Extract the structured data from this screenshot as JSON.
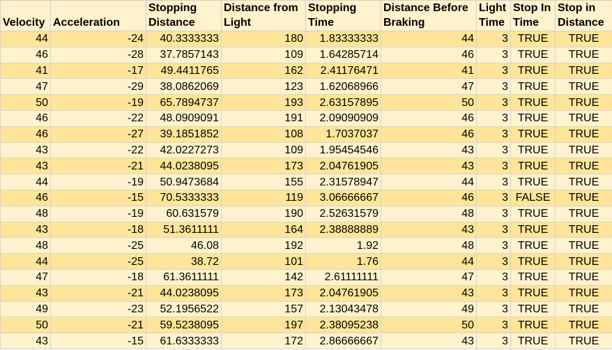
{
  "headers": [
    "Velocity",
    "Acceleration",
    "Stopping Distance",
    "Distance from Light",
    "Stopping Time",
    "Distance Before Braking",
    "Light Time",
    "Stop In Time",
    "Stop in Distance"
  ],
  "rows": [
    [
      "44",
      "-24",
      "40.3333333",
      "180",
      "1.83333333",
      "44",
      "3",
      "TRUE",
      "TRUE"
    ],
    [
      "46",
      "-28",
      "37.7857143",
      "109",
      "1.64285714",
      "46",
      "3",
      "TRUE",
      "TRUE"
    ],
    [
      "41",
      "-17",
      "49.4411765",
      "162",
      "2.41176471",
      "41",
      "3",
      "TRUE",
      "TRUE"
    ],
    [
      "47",
      "-29",
      "38.0862069",
      "123",
      "1.62068966",
      "47",
      "3",
      "TRUE",
      "TRUE"
    ],
    [
      "50",
      "-19",
      "65.7894737",
      "193",
      "2.63157895",
      "50",
      "3",
      "TRUE",
      "TRUE"
    ],
    [
      "46",
      "-22",
      "48.0909091",
      "191",
      "2.09090909",
      "46",
      "3",
      "TRUE",
      "TRUE"
    ],
    [
      "46",
      "-27",
      "39.1851852",
      "108",
      "1.7037037",
      "46",
      "3",
      "TRUE",
      "TRUE"
    ],
    [
      "43",
      "-22",
      "42.0227273",
      "109",
      "1.95454546",
      "43",
      "3",
      "TRUE",
      "TRUE"
    ],
    [
      "43",
      "-21",
      "44.0238095",
      "173",
      "2.04761905",
      "43",
      "3",
      "TRUE",
      "TRUE"
    ],
    [
      "44",
      "-19",
      "50.9473684",
      "155",
      "2.31578947",
      "44",
      "3",
      "TRUE",
      "TRUE"
    ],
    [
      "46",
      "-15",
      "70.5333333",
      "119",
      "3.06666667",
      "46",
      "3",
      "FALSE",
      "TRUE"
    ],
    [
      "48",
      "-19",
      "60.631579",
      "190",
      "2.52631579",
      "48",
      "3",
      "TRUE",
      "TRUE"
    ],
    [
      "43",
      "-18",
      "51.3611111",
      "164",
      "2.38888889",
      "43",
      "3",
      "TRUE",
      "TRUE"
    ],
    [
      "48",
      "-25",
      "46.08",
      "192",
      "1.92",
      "48",
      "3",
      "TRUE",
      "TRUE"
    ],
    [
      "44",
      "-25",
      "38.72",
      "101",
      "1.76",
      "44",
      "3",
      "TRUE",
      "TRUE"
    ],
    [
      "47",
      "-18",
      "61.3611111",
      "142",
      "2.61111111",
      "47",
      "3",
      "TRUE",
      "TRUE"
    ],
    [
      "43",
      "-21",
      "44.0238095",
      "173",
      "2.04761905",
      "43",
      "3",
      "TRUE",
      "TRUE"
    ],
    [
      "49",
      "-23",
      "52.1956522",
      "157",
      "2.13043478",
      "49",
      "3",
      "TRUE",
      "TRUE"
    ],
    [
      "50",
      "-21",
      "59.5238095",
      "197",
      "2.38095238",
      "50",
      "3",
      "TRUE",
      "TRUE"
    ],
    [
      "43",
      "-15",
      "61.6333333",
      "172",
      "2.86666667",
      "43",
      "3",
      "TRUE",
      "TRUE"
    ]
  ]
}
